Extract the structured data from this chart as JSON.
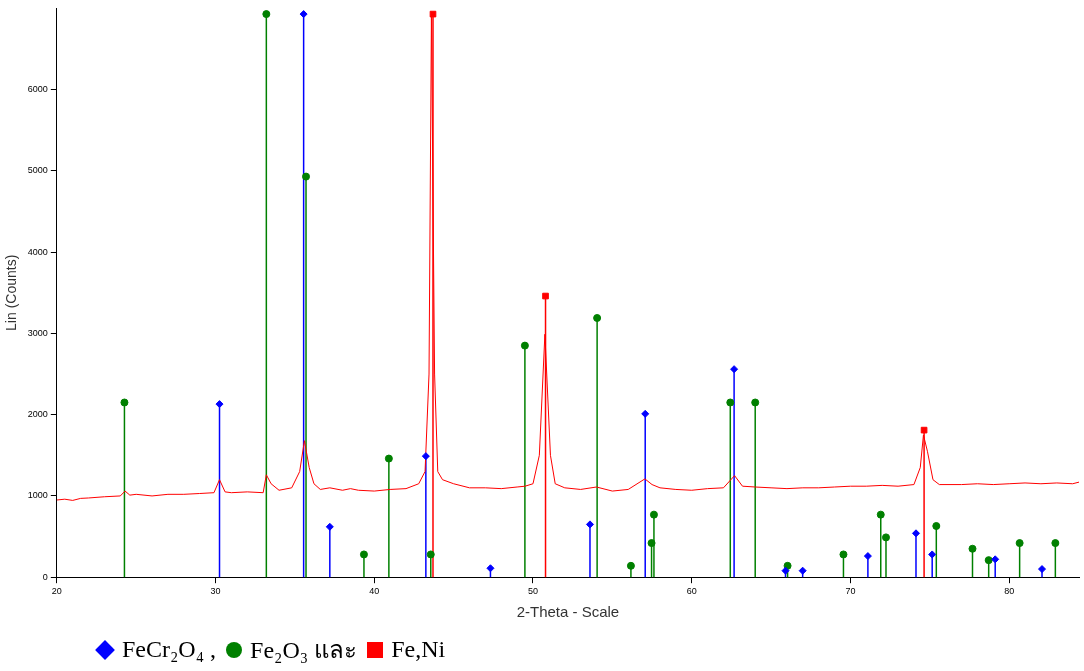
{
  "chart_data": {
    "type": "line",
    "xlabel": "2-Theta - Scale",
    "ylabel": "Lin (Counts)",
    "xlim": [
      20,
      84.4
    ],
    "xticks": [
      20,
      30,
      40,
      50,
      60,
      70,
      80
    ],
    "ylim": [
      0,
      7000
    ],
    "yticks": [
      0,
      1000,
      2000,
      3000,
      4000,
      5000,
      6000
    ],
    "legend": "bottom left",
    "series": [
      {
        "color": "#ff0000",
        "marker": "none",
        "x": [
          20,
          20.5,
          21,
          21.5,
          22,
          23,
          24,
          24.3,
          24.6,
          25,
          26,
          27,
          28,
          29,
          29.9,
          30.25,
          30.6,
          31,
          32,
          33,
          33.2,
          33.5,
          34,
          34.8,
          35.3,
          35.6,
          35.9,
          36.2,
          36.6,
          37.2,
          38,
          38.5,
          39,
          40,
          41,
          42,
          42.8,
          43.2,
          43.45,
          43.6,
          43.8,
          44,
          44.3,
          45,
          46,
          47,
          48,
          49,
          49.5,
          50,
          50.4,
          50.75,
          51.1,
          51.4,
          52,
          53,
          54,
          55,
          56,
          57.05,
          57.5,
          58,
          59,
          60,
          61,
          62,
          62.7,
          63.2,
          64,
          65,
          66,
          67,
          68,
          69,
          70,
          71,
          72,
          73,
          74,
          74.4,
          74.6,
          74.85,
          75.2,
          75.6,
          77,
          78,
          79,
          80,
          81,
          82,
          83,
          84,
          84.4
        ],
        "values": [
          950,
          960,
          945,
          970,
          975,
          990,
          1000,
          1060,
          1010,
          1020,
          1000,
          1020,
          1020,
          1030,
          1040,
          1200,
          1050,
          1040,
          1050,
          1040,
          1260,
          1150,
          1070,
          1100,
          1300,
          1680,
          1350,
          1150,
          1080,
          1100,
          1070,
          1090,
          1070,
          1060,
          1080,
          1090,
          1150,
          1300,
          2500,
          6900,
          2500,
          1300,
          1200,
          1150,
          1100,
          1100,
          1090,
          1110,
          1120,
          1150,
          1500,
          2990,
          1500,
          1150,
          1100,
          1080,
          1110,
          1060,
          1080,
          1210,
          1140,
          1100,
          1080,
          1070,
          1090,
          1100,
          1250,
          1120,
          1110,
          1100,
          1090,
          1100,
          1100,
          1110,
          1120,
          1120,
          1130,
          1120,
          1140,
          1350,
          1750,
          1550,
          1200,
          1140,
          1140,
          1150,
          1140,
          1150,
          1160,
          1150,
          1160,
          1150,
          1170
        ]
      },
      {
        "type": "lollipop",
        "name": "FeCr₂O₄ ,",
        "color": "#0000ff",
        "marker": "diamond",
        "x": [
          30.25,
          35.55,
          37.2,
          43.25,
          47.32,
          53.59,
          57.07,
          62.67,
          65.91,
          66.99,
          71.1,
          74.13,
          75.15,
          79.12,
          82.07
        ],
        "values": [
          2130,
          6930,
          620,
          1490,
          110,
          650,
          2010,
          2560,
          80,
          80,
          260,
          540,
          280,
          220,
          100
        ]
      },
      {
        "type": "lollipop",
        "name": "Fe₂O₃ และ",
        "color": "#008000",
        "marker": "circle",
        "x": [
          24.26,
          33.2,
          35.7,
          39.35,
          40.92,
          43.56,
          49.49,
          54.04,
          56.17,
          57.47,
          57.62,
          62.43,
          64.0,
          66.04,
          69.56,
          71.91,
          72.24,
          75.41,
          77.69,
          78.71,
          80.66,
          82.91
        ],
        "values": [
          2150,
          6930,
          4930,
          280,
          1460,
          280,
          2850,
          3190,
          140,
          420,
          770,
          2150,
          2150,
          140,
          280,
          770,
          490,
          630,
          350,
          210,
          420,
          420
        ]
      },
      {
        "type": "lollipop",
        "name": "Fe,Ni",
        "color": "#ff0000",
        "marker": "square",
        "x": [
          43.7,
          50.79,
          74.64
        ],
        "values": [
          6930,
          3460,
          1810
        ]
      }
    ]
  }
}
